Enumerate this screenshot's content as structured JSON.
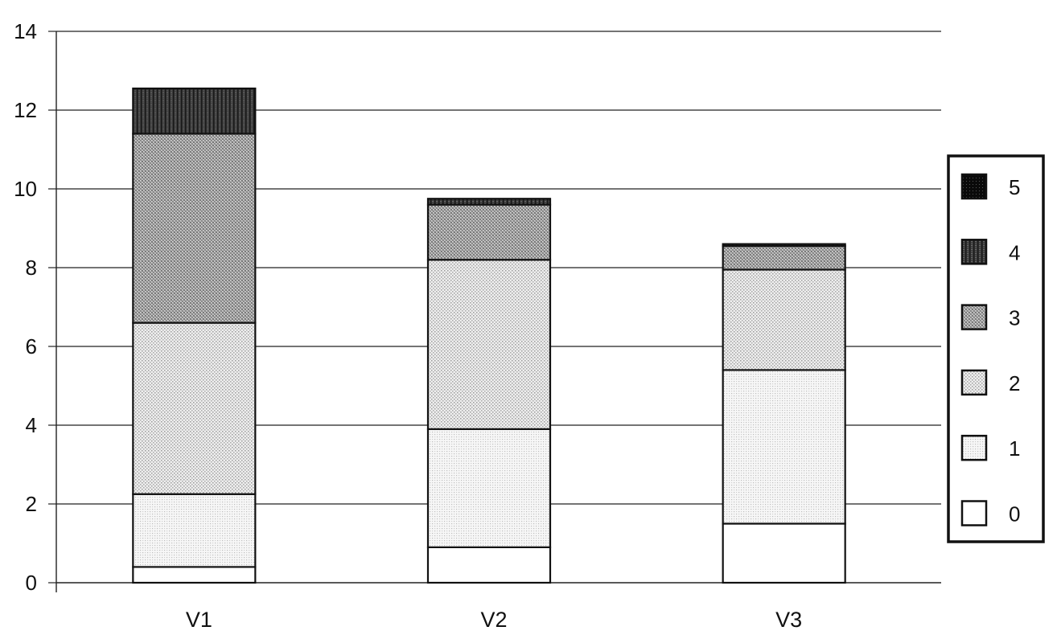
{
  "chart_data": {
    "type": "bar",
    "stacked": true,
    "title": "",
    "xlabel": "",
    "ylabel": "",
    "categories": [
      "V1",
      "V2",
      "V3"
    ],
    "ylim": [
      0,
      14
    ],
    "yticks": [
      "0",
      "2",
      "4",
      "6",
      "8",
      "10",
      "12",
      "14"
    ],
    "grid": true,
    "legend_position": "right",
    "series": [
      {
        "name": "0",
        "values": [
          0.4,
          0.9,
          1.5
        ],
        "pattern": "white"
      },
      {
        "name": "1",
        "values": [
          1.85,
          3.0,
          3.9
        ],
        "pattern": "light-grid"
      },
      {
        "name": "2",
        "values": [
          4.35,
          4.3,
          2.55
        ],
        "pattern": "dense-grid"
      },
      {
        "name": "3",
        "values": [
          4.8,
          1.4,
          0.6
        ],
        "pattern": "medium-dots"
      },
      {
        "name": "4",
        "values": [
          1.15,
          0.15,
          0.05
        ],
        "pattern": "dark-checker"
      },
      {
        "name": "5",
        "values": [
          0.0,
          0.0,
          0.0
        ],
        "pattern": "black"
      }
    ]
  }
}
